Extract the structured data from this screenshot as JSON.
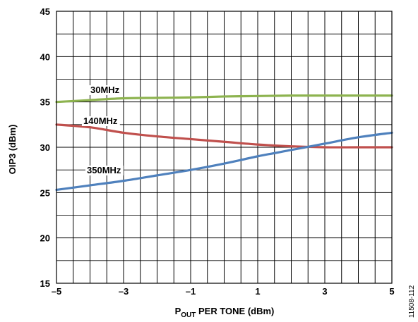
{
  "chart_data": {
    "type": "line",
    "title": "",
    "xlabel_main": "P",
    "xlabel_sub": "OUT",
    "xlabel_rest": " PER TONE (dBm)",
    "ylabel": "OIP3 (dBm)",
    "xlim": [
      -5,
      5
    ],
    "ylim": [
      15,
      45
    ],
    "x_ticks": [
      -5,
      -3,
      -1,
      1,
      3,
      5
    ],
    "x_tick_labels": [
      "–5",
      "–3",
      "–1",
      "1",
      "3",
      "5"
    ],
    "y_ticks": [
      15,
      20,
      25,
      30,
      35,
      40,
      45
    ],
    "y_tick_labels": [
      "15",
      "20",
      "25",
      "30",
      "35",
      "40",
      "45"
    ],
    "x_minor_step": 0.5,
    "y_minor_step": 2.5,
    "grid": true,
    "legend": "none",
    "series": [
      {
        "name": "30MHz",
        "color": "#8db34f",
        "x": [
          -5,
          -4,
          -3,
          -2,
          -1,
          0,
          1,
          2,
          3,
          4,
          5
        ],
        "y": [
          35.0,
          35.2,
          35.4,
          35.45,
          35.5,
          35.6,
          35.65,
          35.7,
          35.7,
          35.7,
          35.7
        ]
      },
      {
        "name": "140MHz",
        "color": "#c0504d",
        "x": [
          -5,
          -4,
          -3,
          -2,
          -1,
          0,
          1,
          2,
          3,
          4,
          5
        ],
        "y": [
          32.5,
          32.2,
          31.6,
          31.2,
          30.9,
          30.6,
          30.3,
          30.1,
          30.0,
          30.0,
          30.0
        ]
      },
      {
        "name": "350MHz",
        "color": "#4f81bd",
        "x": [
          -5,
          -4,
          -3,
          -2,
          -1,
          0,
          1,
          2,
          3,
          4,
          5
        ],
        "y": [
          25.3,
          25.8,
          26.3,
          26.9,
          27.5,
          28.2,
          29.0,
          29.7,
          30.4,
          31.1,
          31.6
        ]
      }
    ]
  },
  "figure_id": "11508-112"
}
